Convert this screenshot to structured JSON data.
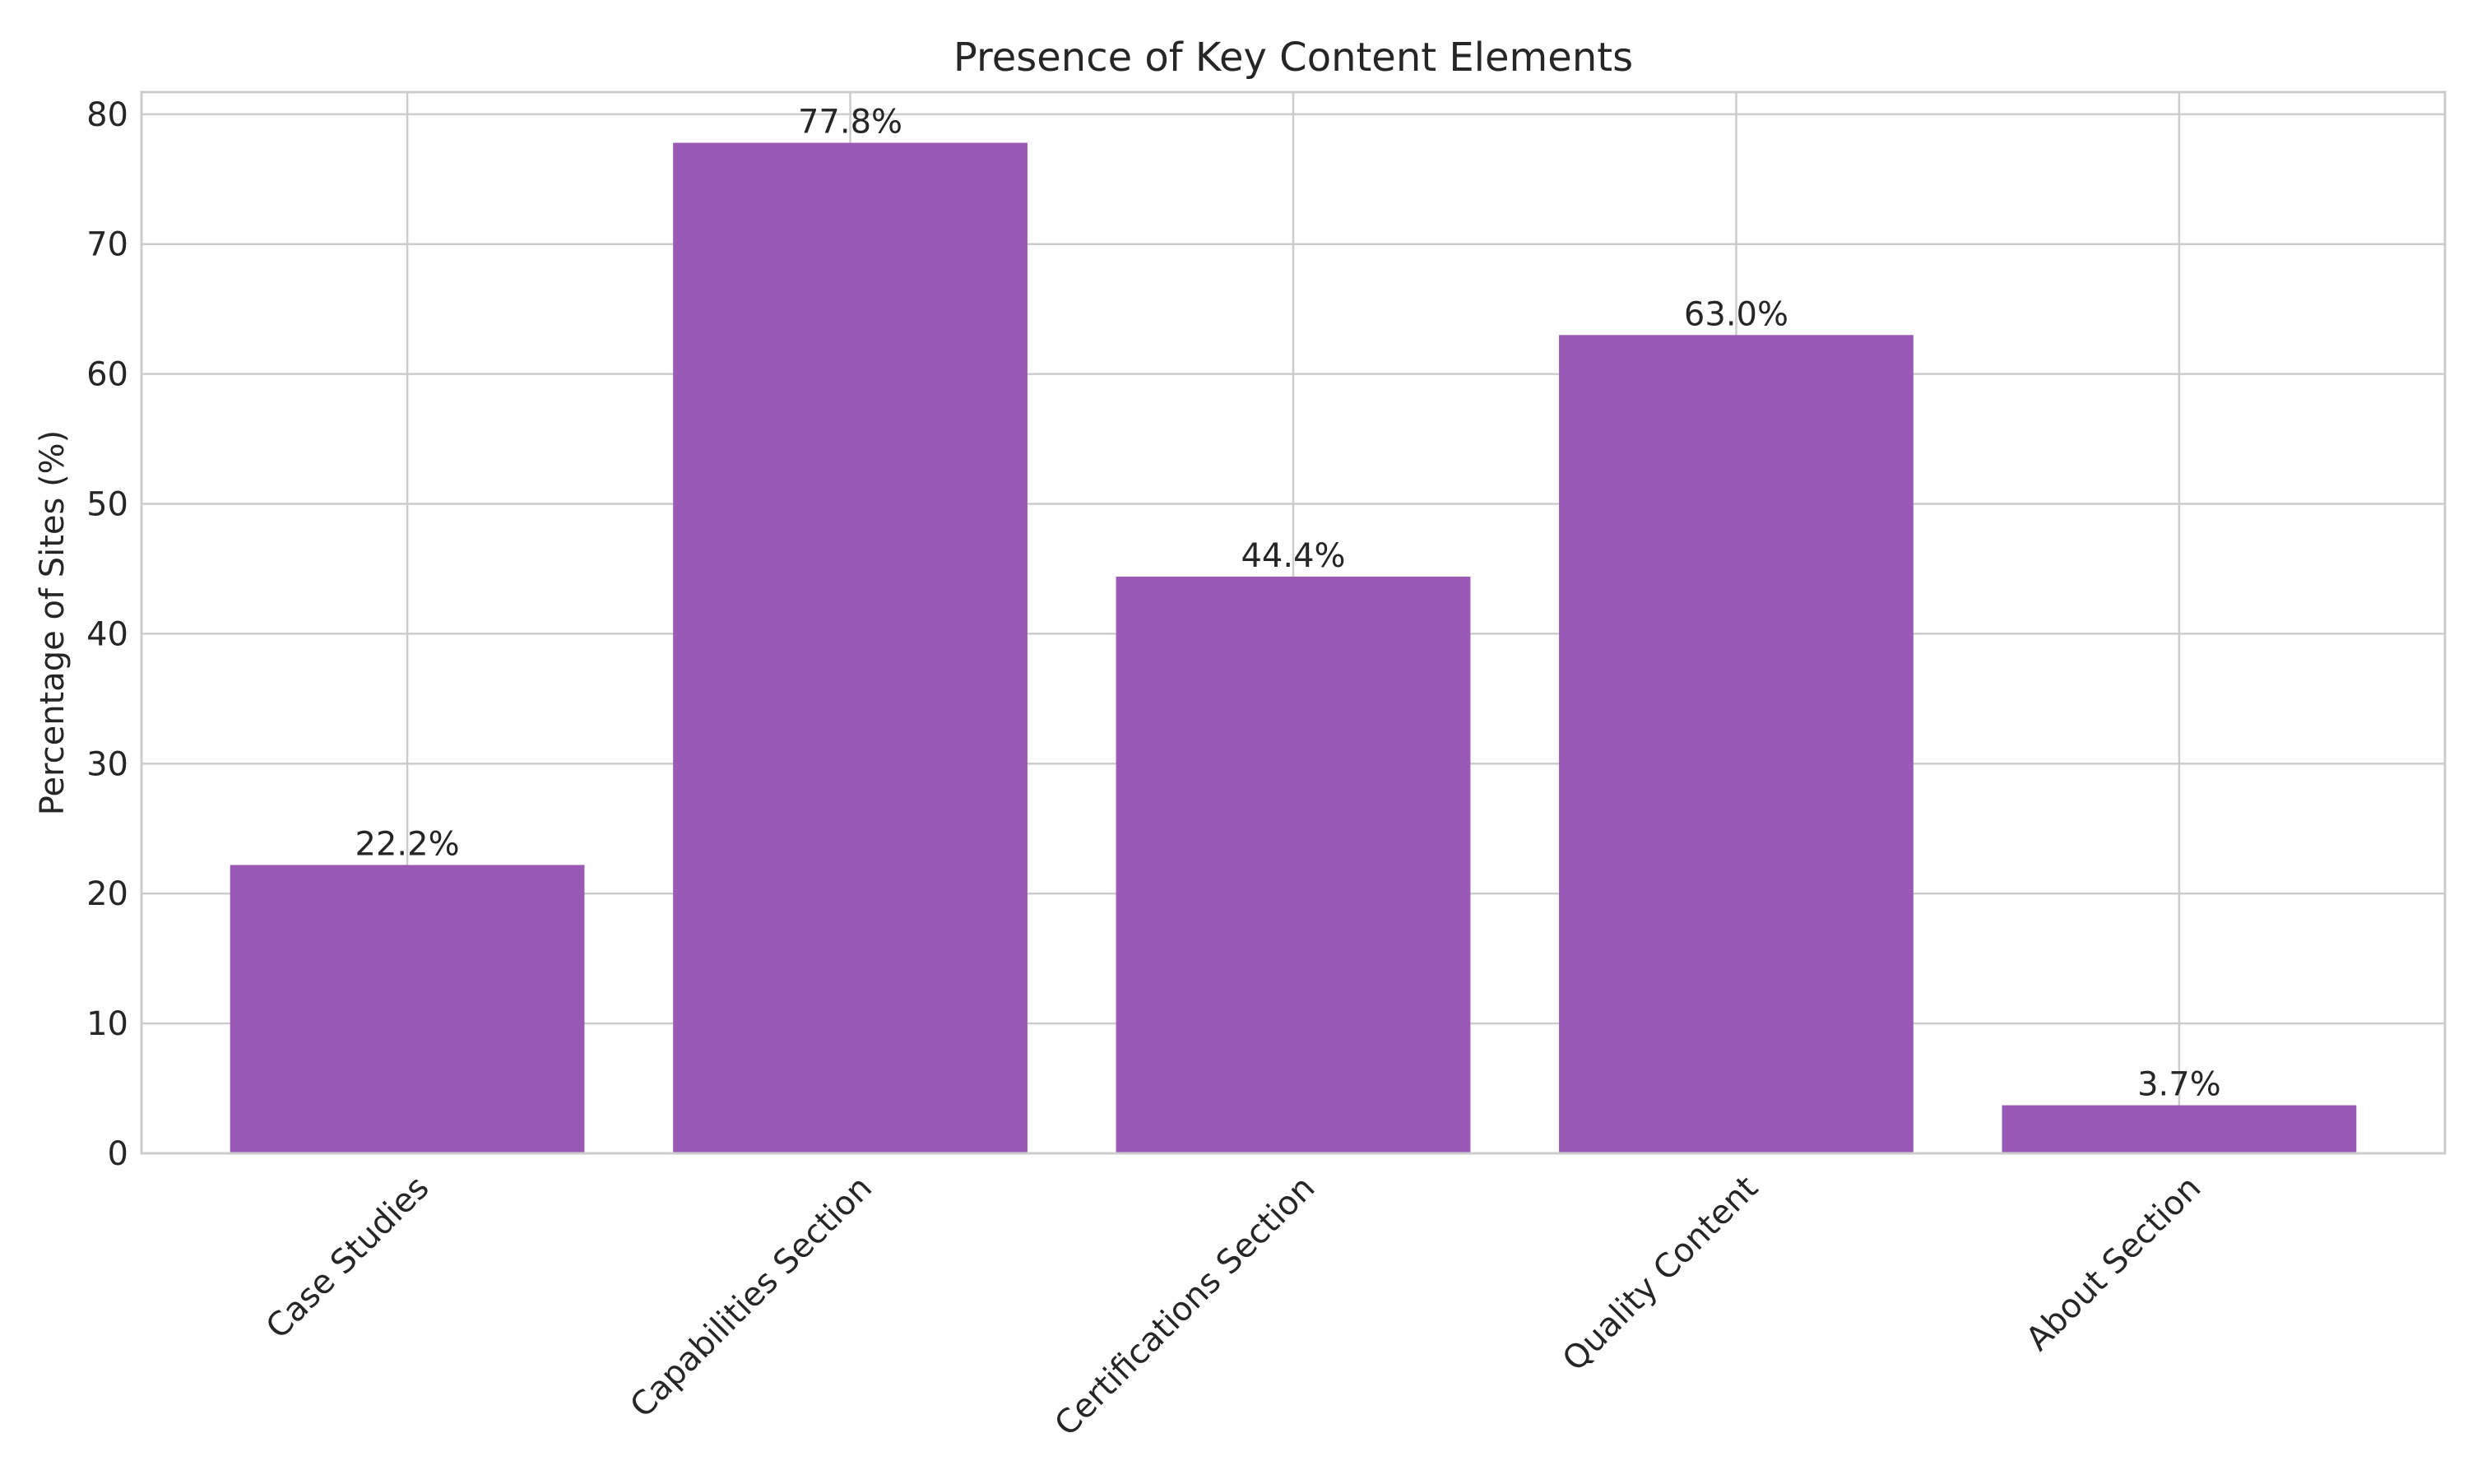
{
  "chart_data": {
    "type": "bar",
    "title": "Presence of Key Content Elements",
    "xlabel": "",
    "ylabel": "Percentage of Sites (%)",
    "categories": [
      "Case Studies",
      "Capabilities Section",
      "Certifications Section",
      "Quality Content",
      "About Section"
    ],
    "values": [
      22.2,
      77.8,
      44.4,
      63.0,
      3.7
    ],
    "data_labels": [
      "22.2%",
      "77.8%",
      "44.4%",
      "63.0%",
      "3.7%"
    ],
    "ylim": [
      0,
      81.7
    ],
    "yticks": [
      0,
      10,
      20,
      30,
      40,
      50,
      60,
      70,
      80
    ],
    "grid": true,
    "legend": "none",
    "colors": {
      "bar": "#9b59b6",
      "grid": "#cccccc",
      "spine": "#cccccc",
      "text": "#262626",
      "background": "#ffffff"
    }
  }
}
